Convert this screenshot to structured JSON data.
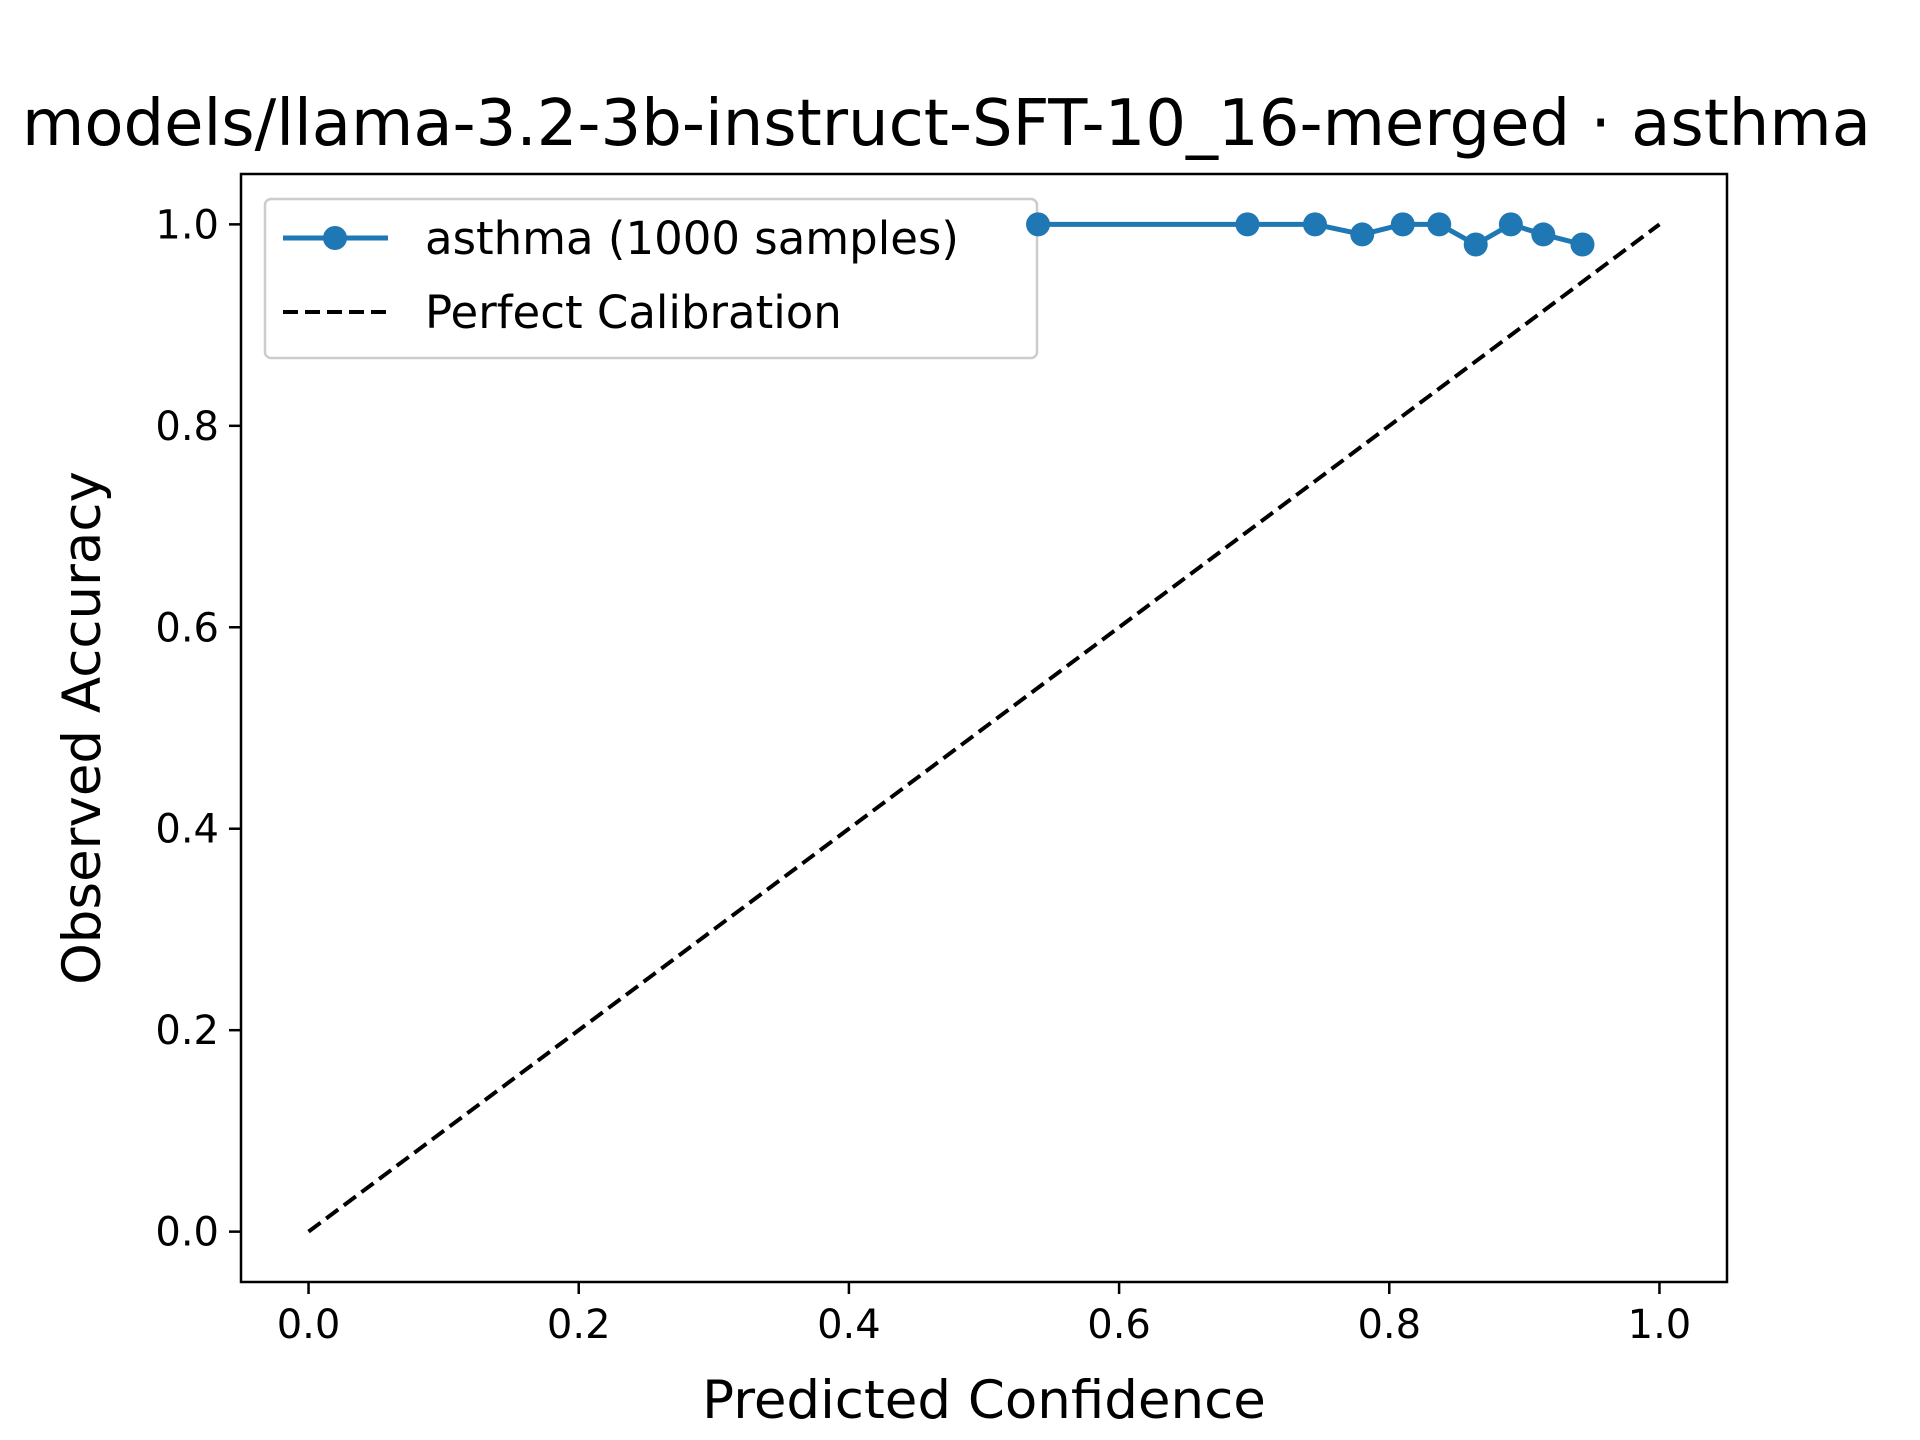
{
  "chart_data": {
    "type": "line",
    "title": "models/llama-3.2-3b-instruct-SFT-10_16-merged · asthma",
    "xlabel": "Predicted Confidence",
    "ylabel": "Observed Accuracy",
    "xlim": [
      -0.05,
      1.05
    ],
    "ylim": [
      -0.05,
      1.05
    ],
    "xticks": [
      "0.0",
      "0.2",
      "0.4",
      "0.6",
      "0.8",
      "1.0"
    ],
    "yticks": [
      "0.0",
      "0.2",
      "0.4",
      "0.6",
      "0.8",
      "1.0"
    ],
    "grid": false,
    "legend_position": "top-left",
    "series": [
      {
        "name": "asthma (1000 samples)",
        "color": "#1f77b4",
        "style": "solid-with-markers",
        "points": [
          {
            "x": 0.54,
            "y": 1.0
          },
          {
            "x": 0.695,
            "y": 1.0
          },
          {
            "x": 0.745,
            "y": 1.0
          },
          {
            "x": 0.78,
            "y": 0.99
          },
          {
            "x": 0.81,
            "y": 1.0
          },
          {
            "x": 0.837,
            "y": 1.0
          },
          {
            "x": 0.864,
            "y": 0.98
          },
          {
            "x": 0.89,
            "y": 1.0
          },
          {
            "x": 0.914,
            "y": 0.99
          },
          {
            "x": 0.943,
            "y": 0.98
          }
        ]
      },
      {
        "name": "Perfect Calibration",
        "color": "#000000",
        "style": "dashed",
        "points": [
          {
            "x": 0.0,
            "y": 0.0
          },
          {
            "x": 1.0,
            "y": 1.0
          }
        ]
      }
    ]
  }
}
